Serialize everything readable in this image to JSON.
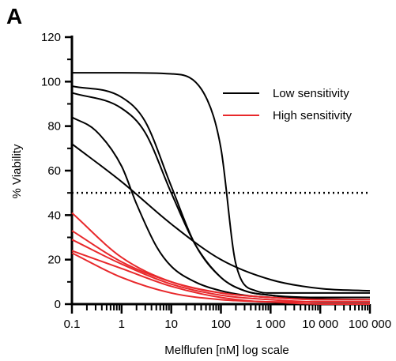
{
  "panel_label": "A",
  "chart_data": {
    "type": "line",
    "xlabel": "Melflufen [nM] log scale",
    "ylabel": "% Viability",
    "x_scale": "log",
    "xlim": [
      0.1,
      100000
    ],
    "ylim": [
      0,
      120
    ],
    "x_ticks": [
      0.1,
      1,
      10,
      100,
      1000,
      10000,
      100000
    ],
    "x_tick_labels": [
      "0.1",
      "1",
      "10",
      "100",
      "1 000",
      "10 000",
      "100 000"
    ],
    "y_ticks": [
      0,
      20,
      40,
      60,
      80,
      100,
      120
    ],
    "y_tick_labels": [
      "0",
      "20",
      "40",
      "60",
      "80",
      "100",
      "120"
    ],
    "grid": false,
    "legend_position": "top-right",
    "legend": [
      {
        "label": "Low sensitivity",
        "color": "#000000"
      },
      {
        "label": "High sensitivity",
        "color": "#e8282b"
      }
    ],
    "reference_line": {
      "y": 50,
      "style": "dotted",
      "color": "#000000"
    },
    "series": [
      {
        "group": "Low sensitivity",
        "color": "#000000",
        "x": [
          0.1,
          1,
          10,
          50,
          100,
          200,
          500,
          1000,
          10000,
          100000
        ],
        "y": [
          104,
          104,
          103.5,
          93,
          70,
          18,
          6,
          5,
          5,
          5
        ]
      },
      {
        "group": "Low sensitivity",
        "color": "#000000",
        "x": [
          0.1,
          1,
          3,
          10,
          30,
          100,
          300,
          1000,
          10000,
          100000
        ],
        "y": [
          98,
          93,
          82,
          53,
          27,
          12,
          6,
          4,
          3,
          3
        ]
      },
      {
        "group": "Low sensitivity",
        "color": "#000000",
        "x": [
          0.1,
          1,
          3,
          10,
          30,
          100,
          300,
          1000,
          10000,
          100000
        ],
        "y": [
          95,
          88,
          77,
          50,
          27,
          12,
          6,
          4,
          2,
          2
        ]
      },
      {
        "group": "Low sensitivity",
        "color": "#000000",
        "x": [
          0.1,
          0.3,
          1,
          2,
          5,
          10,
          30,
          100,
          300,
          1000,
          100000
        ],
        "y": [
          84,
          78,
          62,
          45,
          26,
          17,
          10,
          6,
          4,
          3,
          2
        ]
      },
      {
        "group": "Low sensitivity",
        "color": "#000000",
        "x": [
          0.1,
          1,
          10,
          100,
          1000,
          10000,
          100000
        ],
        "y": [
          72,
          55,
          36,
          20,
          11,
          7,
          6
        ]
      },
      {
        "group": "High sensitivity",
        "color": "#e8282b",
        "x": [
          0.1,
          1,
          10,
          100,
          1000,
          10000,
          100000
        ],
        "y": [
          41,
          21,
          10,
          5,
          3,
          2,
          2
        ]
      },
      {
        "group": "High sensitivity",
        "color": "#e8282b",
        "x": [
          0.1,
          1,
          10,
          100,
          1000,
          10000,
          100000
        ],
        "y": [
          33,
          19,
          10,
          5,
          3,
          2,
          2
        ]
      },
      {
        "group": "High sensitivity",
        "color": "#e8282b",
        "x": [
          0.1,
          1,
          10,
          100,
          1000,
          10000,
          100000
        ],
        "y": [
          29,
          18,
          9,
          4,
          2,
          1,
          1
        ]
      },
      {
        "group": "High sensitivity",
        "color": "#e8282b",
        "x": [
          0.1,
          1,
          10,
          100,
          1000,
          10000,
          100000
        ],
        "y": [
          24,
          16,
          8,
          3,
          1,
          1,
          1
        ]
      },
      {
        "group": "High sensitivity",
        "color": "#e8282b",
        "x": [
          0.1,
          1,
          10,
          100,
          1000,
          10000,
          100000
        ],
        "y": [
          23,
          12,
          5,
          2,
          1,
          0,
          0
        ]
      }
    ]
  }
}
